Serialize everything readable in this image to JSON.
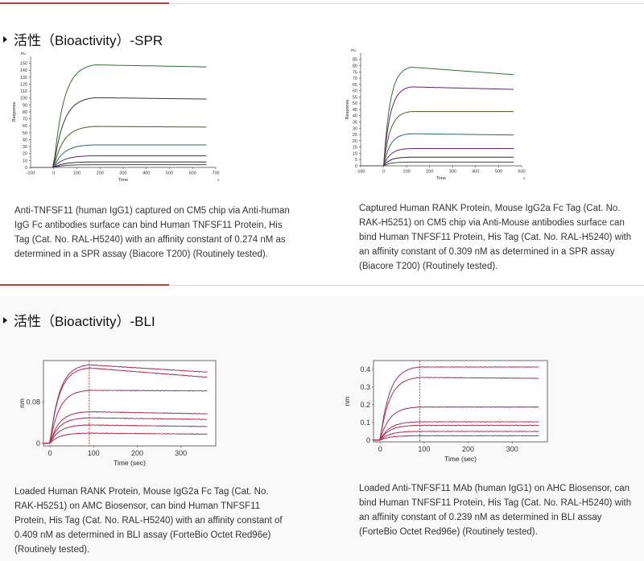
{
  "spr_section": {
    "title": "活性（Bioactivity）-SPR",
    "chart_left": {
      "xlabel": "Time",
      "ylabel": "Response",
      "unit_x": "s",
      "unit_y": "RU",
      "xticks": [
        "-100",
        "0",
        "100",
        "200",
        "300",
        "400",
        "500",
        "600",
        "700"
      ],
      "yticks": [
        "0",
        "10",
        "20",
        "30",
        "40",
        "50",
        "60",
        "70",
        "80",
        "90",
        "100",
        "110",
        "120",
        "130",
        "140",
        "150"
      ],
      "caption": "Anti-TNFSF11 (human IgG1) captured on CM5 chip via Anti-human IgG Fc antibodies surface can bind Human TNFSF11 Protein, His Tag (Cat. No. RAL-H5240) with an affinity constant of 0.274 nM as determined in a SPR assay (Biacore T200) (Routinely tested)."
    },
    "chart_right": {
      "xlabel": "Time",
      "ylabel": "Response",
      "unit_x": "s",
      "unit_y": "RU",
      "xticks": [
        "-100",
        "0",
        "100",
        "200",
        "300",
        "400",
        "500",
        "600"
      ],
      "yticks": [
        "0",
        "5",
        "10",
        "15",
        "20",
        "25",
        "30",
        "35",
        "40",
        "45",
        "50",
        "55",
        "60",
        "65",
        "70",
        "75",
        "80",
        "85"
      ],
      "caption": "Captured Human RANK Protein, Mouse IgG2a Fc Tag (Cat. No. RAK-H5251) on CM5 chip via Anti-Mouse antibodies surface can bind Human TNFSF11 Protein, His Tag (Cat. No. RAL-H5240) with an affinity constant of 0.309 nM as determined in a SPR assay (Biacore T200) (Routinely tested)."
    }
  },
  "bli_section": {
    "title": "活性（Bioactivity）-BLI",
    "chart_left": {
      "xlabel": "Time (sec)",
      "ylabel": "nm",
      "xticks": [
        "0",
        "100",
        "200",
        "300"
      ],
      "yticks": [
        "0",
        "0.08"
      ],
      "caption": "Loaded Human RANK Protein, Mouse IgG2a Fc Tag (Cat. No. RAK-H5251) on AMC Biosensor, can bind Human TNFSF11 Protein, His Tag (Cat. No. RAL-H5240) with an affinity constant of 0.409 nM as determined in BLI assay (ForteBio Octet Red96e) (Routinely tested)."
    },
    "chart_right": {
      "xlabel": "Time (sec)",
      "ylabel": "nm",
      "xticks": [
        "0",
        "100",
        "200",
        "300"
      ],
      "yticks": [
        "0",
        "0.1",
        "0.2",
        "0.3",
        "0.4"
      ],
      "caption": "Loaded Anti-TNFSF11 MAb (human IgG1) on AHC Biosensor, can bind Human TNFSF11 Protein, His Tag (Cat. No. RAL-H5240) with an affinity constant of 0.239 nM as determined in BLI assay (ForteBio Octet Red96e) (Routinely tested)."
    }
  },
  "chart_data": [
    {
      "type": "line",
      "xlim": [
        -100,
        700
      ],
      "ylim": [
        0,
        160
      ],
      "association_end": 180,
      "series": [
        {
          "color": "#3a8a3a",
          "plateau": 150,
          "end": 147
        },
        {
          "color": "#444444",
          "plateau": 102,
          "end": 100
        },
        {
          "color": "#6d6a2a",
          "plateau": 60,
          "end": 59
        },
        {
          "color": "#2e7f7a",
          "plateau": 33,
          "end": 33
        },
        {
          "color": "#7a2a8a",
          "plateau": 17,
          "end": 17
        },
        {
          "color": "#333333",
          "plateau": 8,
          "end": 8
        },
        {
          "color": "#555555",
          "plateau": 4,
          "end": 4
        }
      ]
    },
    {
      "type": "line",
      "xlim": [
        -100,
        600
      ],
      "ylim": [
        0,
        90
      ],
      "association_end": 120,
      "series": [
        {
          "color": "#3a8a3a",
          "plateau": 80,
          "end": 74
        },
        {
          "color": "#7a2a8a",
          "plateau": 64,
          "end": 62
        },
        {
          "color": "#6d6a2a",
          "plateau": 44,
          "end": 44
        },
        {
          "color": "#2e7f7a",
          "plateau": 26,
          "end": 25
        },
        {
          "color": "#7a2a8a",
          "plateau": 14,
          "end": 14
        },
        {
          "color": "#333333",
          "plateau": 7,
          "end": 7
        },
        {
          "color": "#555555",
          "plateau": 3,
          "end": 3
        }
      ]
    },
    {
      "type": "line",
      "xlim": [
        -15,
        380
      ],
      "ylim": [
        -0.005,
        0.16
      ],
      "association_end": 90,
      "series": [
        {
          "color": "#3b3bc8",
          "plateau": 0.154,
          "end": 0.14
        },
        {
          "color": "#3b3bc8",
          "plateau": 0.148,
          "end": 0.13
        },
        {
          "color": "#3b3bc8",
          "plateau": 0.104,
          "end": 0.103
        },
        {
          "color": "#3b3bc8",
          "plateau": 0.062,
          "end": 0.058
        },
        {
          "color": "#3b3bc8",
          "plateau": 0.05,
          "end": 0.047
        },
        {
          "color": "#3b3bc8",
          "plateau": 0.036,
          "end": 0.033
        },
        {
          "color": "#3b3bc8",
          "plateau": 0.02,
          "end": 0.018
        }
      ]
    },
    {
      "type": "line",
      "xlim": [
        -15,
        380
      ],
      "ylim": [
        -0.01,
        0.45
      ],
      "association_end": 90,
      "series": [
        {
          "color": "#3b3bc8",
          "plateau": 0.42,
          "end": 0.42
        },
        {
          "color": "#3b3bc8",
          "plateau": 0.36,
          "end": 0.355
        },
        {
          "color": "#3b3bc8",
          "plateau": 0.19,
          "end": 0.19
        },
        {
          "color": "#3b3bc8",
          "plateau": 0.105,
          "end": 0.105
        },
        {
          "color": "#3b3bc8",
          "plateau": 0.085,
          "end": 0.085
        },
        {
          "color": "#3b3bc8",
          "plateau": 0.05,
          "end": 0.05
        },
        {
          "color": "#3b3bc8",
          "plateau": 0.025,
          "end": 0.025
        }
      ]
    }
  ]
}
